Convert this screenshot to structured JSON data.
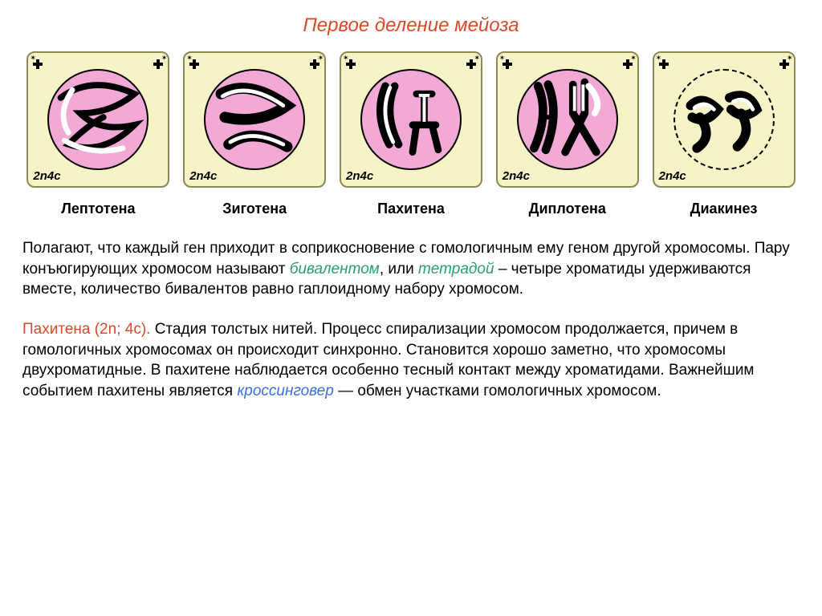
{
  "title": "Первое деление мейоза",
  "title_color": "#d84a2a",
  "frame_bg": "#f6f3c6",
  "frame_border": "#8a8a55",
  "cell_fill": "#f2a9d6",
  "panels": [
    {
      "label": "Лептотена",
      "ploidy": "2n4c",
      "dashed_membrane": false,
      "fill": true
    },
    {
      "label": "Зиготена",
      "ploidy": "2n4c",
      "dashed_membrane": false,
      "fill": true
    },
    {
      "label": "Пахитена",
      "ploidy": "2n4c",
      "dashed_membrane": false,
      "fill": true
    },
    {
      "label": "Диплотена",
      "ploidy": "2n4c",
      "dashed_membrane": false,
      "fill": true
    },
    {
      "label": "Диакинез",
      "ploidy": "2n4c",
      "dashed_membrane": true,
      "fill": false
    }
  ],
  "text1_parts": [
    {
      "t": "Полагают, что каждый ген приходит в соприкосновение с гомологичным ему геном другой хромосомы. Пару конъюгирующих хромосом называют ",
      "c": "#000000",
      "it": false
    },
    {
      "t": "бивалентом",
      "c": "#2aa06a",
      "it": true
    },
    {
      "t": ", или ",
      "c": "#000000",
      "it": false
    },
    {
      "t": "тетрадой",
      "c": "#2aa06a",
      "it": true
    },
    {
      "t": " – четыре хроматиды удерживаются вместе, количество бивалентов равно гаплоидному набору хромосом.",
      "c": "#000000",
      "it": false
    }
  ],
  "text2_parts": [
    {
      "t": "Пахитена (2n; 4c).",
      "c": "#d84a2a",
      "it": false
    },
    {
      "t": " Стадия толстых нитей. Процесс спирализации хромосом продолжается, причем в гомологичных хромосомах он происходит синхронно. Становится хорошо заметно, что хромосомы двухроматидные. В пахитене наблюдается особенно тесный контакт между хроматидами. Важнейшим событием пахитены является ",
      "c": "#000000",
      "it": false
    },
    {
      "t": "кроссинговер",
      "c": "#3a6fe0",
      "it": true
    },
    {
      "t": " — обмен участками гомологичных хромосом.",
      "c": "#000000",
      "it": false
    }
  ],
  "body_fontsize": 19
}
